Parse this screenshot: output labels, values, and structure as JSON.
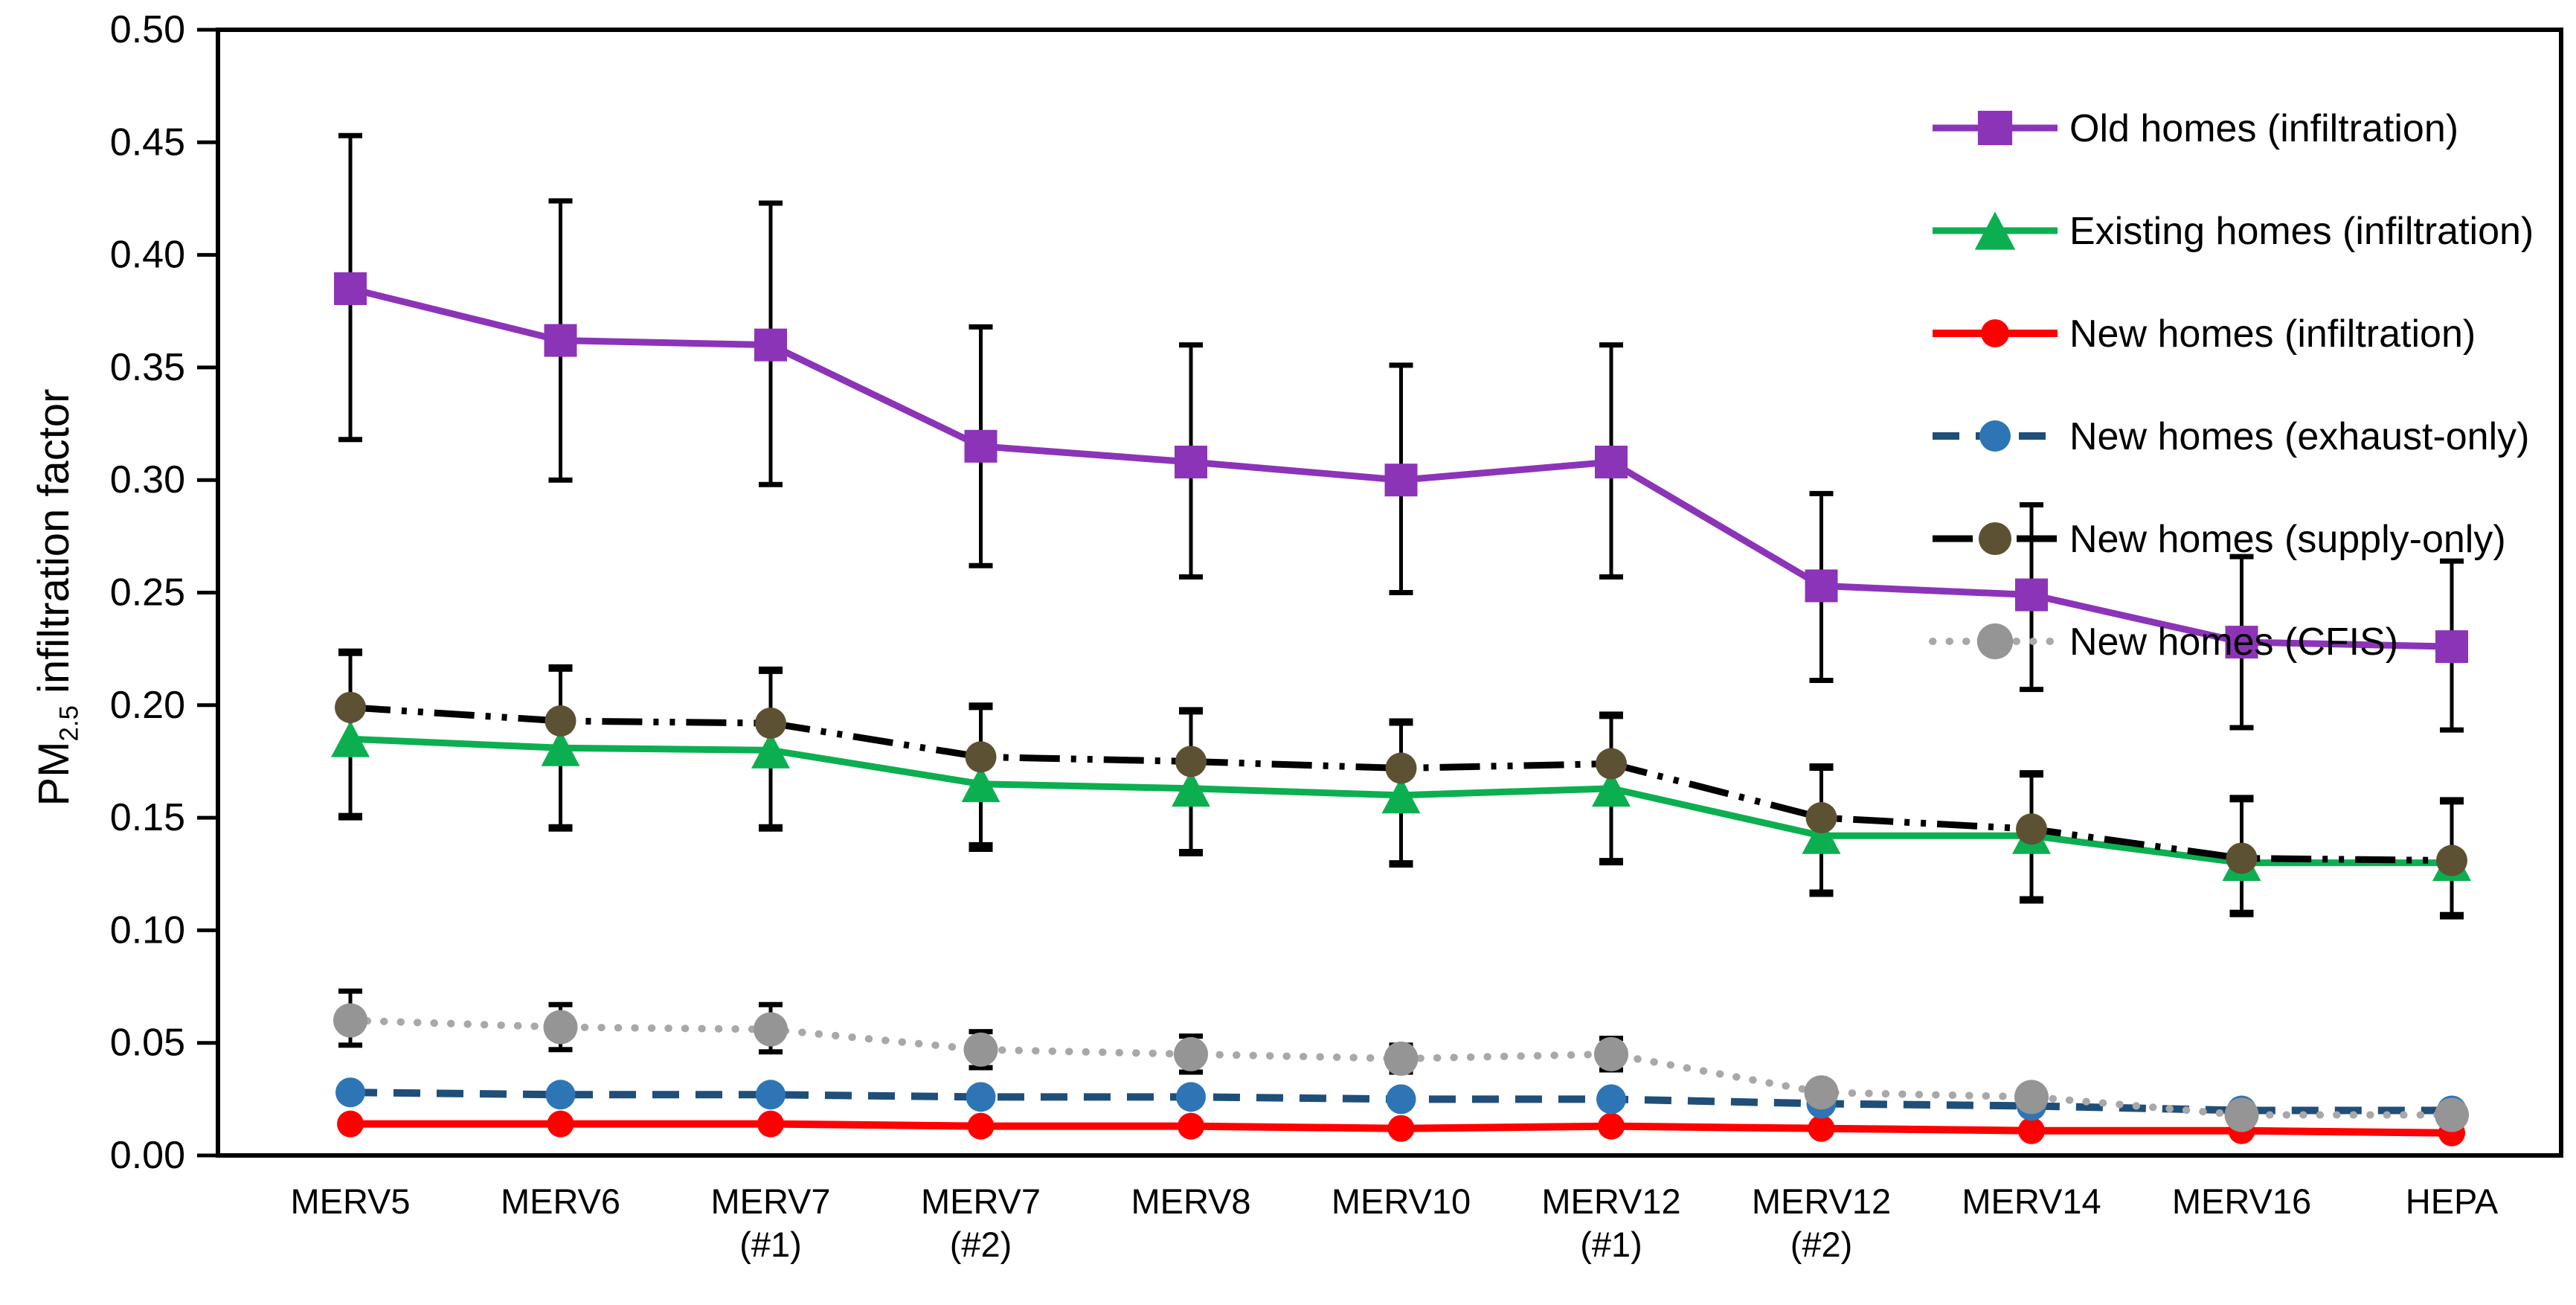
{
  "chart_data": {
    "type": "line",
    "title": "",
    "ylabel": {
      "prefix": "PM",
      "sub": "2.5",
      "suffix": " infiltration factor"
    },
    "xlabel": "",
    "grid": false,
    "legend_position": "top-right-inside",
    "background_color": "#ffffff",
    "frame_color": "#000000",
    "categories": [
      "MERV5",
      "MERV6",
      "MERV7\n(#1)",
      "MERV7\n(#2)",
      "MERV8",
      "MERV10",
      "MERV12\n(#1)",
      "MERV12\n(#2)",
      "MERV14",
      "MERV16",
      "HEPA"
    ],
    "y_axis": {
      "min": 0.0,
      "max": 0.5,
      "step": 0.05,
      "tick_labels": [
        "0.00",
        "0.05",
        "0.10",
        "0.15",
        "0.20",
        "0.25",
        "0.30",
        "0.35",
        "0.40",
        "0.45",
        "0.50"
      ]
    },
    "series": [
      {
        "name": "Old homes (infiltration)",
        "marker": "square",
        "marker_color": "#8C34B8",
        "marker_size": 44,
        "line_color": "#8C34B8",
        "line_style": "solid",
        "line_width": 9,
        "error_color": "#000000",
        "values": [
          0.385,
          0.362,
          0.36,
          0.315,
          0.308,
          0.3,
          0.308,
          0.253,
          0.249,
          0.228,
          0.226
        ],
        "err_low": [
          0.318,
          0.3,
          0.298,
          0.262,
          0.257,
          0.25,
          0.257,
          0.211,
          0.207,
          0.19,
          0.189
        ],
        "err_high": [
          0.453,
          0.424,
          0.423,
          0.368,
          0.36,
          0.351,
          0.36,
          0.294,
          0.289,
          0.266,
          0.264
        ]
      },
      {
        "name": "Existing homes (infiltration)",
        "marker": "triangle",
        "marker_color": "#0CAF50",
        "marker_size": 52,
        "line_color": "#0CAF50",
        "line_style": "solid",
        "line_width": 9,
        "error_color": "#000000",
        "values": [
          0.185,
          0.181,
          0.18,
          0.165,
          0.163,
          0.16,
          0.163,
          0.142,
          0.142,
          0.13,
          0.13
        ],
        "err_low": [
          0.15,
          0.145,
          0.145,
          0.136,
          0.134,
          0.129,
          0.13,
          0.116,
          0.113,
          0.107,
          0.106
        ],
        "err_high": [
          0.223,
          0.216,
          0.215,
          0.199,
          0.197,
          0.192,
          0.195,
          0.172,
          0.169,
          0.158,
          0.157
        ]
      },
      {
        "name": "New homes (infiltration)",
        "marker": "circle",
        "marker_color": "#FF0000",
        "marker_size": 36,
        "line_color": "#FF0000",
        "line_style": "solid",
        "line_width": 10,
        "error_color": "#000000",
        "values": [
          0.014,
          0.014,
          0.014,
          0.013,
          0.013,
          0.012,
          0.013,
          0.012,
          0.011,
          0.011,
          0.01
        ],
        "err_low": null,
        "err_high": null
      },
      {
        "name": "New homes (exhaust-only)",
        "marker": "circle",
        "marker_color": "#2E75B6",
        "marker_size": 40,
        "line_color": "#1F4E79",
        "line_style": "dashed",
        "line_width": 10,
        "error_color": "#000000",
        "values": [
          0.028,
          0.027,
          0.027,
          0.026,
          0.026,
          0.025,
          0.025,
          0.023,
          0.022,
          0.02,
          0.02
        ],
        "err_low": null,
        "err_high": null
      },
      {
        "name": "New homes (supply-only)",
        "marker": "circle",
        "marker_color": "#5C5132",
        "marker_size": 42,
        "line_color": "#000000",
        "line_style": "dash-dot-dot",
        "line_width": 9,
        "error_color": "#000000",
        "values": [
          0.199,
          0.193,
          0.192,
          0.177,
          0.175,
          0.172,
          0.174,
          0.15,
          0.145,
          0.132,
          0.131
        ],
        "err_low": [
          0.151,
          0.146,
          0.146,
          0.138,
          0.135,
          0.13,
          0.131,
          0.117,
          0.114,
          0.108,
          0.107
        ],
        "err_high": [
          0.224,
          0.217,
          0.216,
          0.2,
          0.198,
          0.193,
          0.196,
          0.173,
          0.17,
          0.159,
          0.158
        ]
      },
      {
        "name": "New homes (CFIS)",
        "marker": "circle",
        "marker_color": "#959595",
        "marker_size": 46,
        "line_color": "#A8A8A8",
        "line_style": "dotted",
        "line_width": 10,
        "error_color": "#000000",
        "values": [
          0.06,
          0.057,
          0.056,
          0.047,
          0.045,
          0.043,
          0.045,
          0.028,
          0.026,
          0.018,
          0.018
        ],
        "err_low": [
          0.049,
          0.047,
          0.046,
          0.039,
          0.037,
          0.037,
          0.038,
          null,
          null,
          null,
          null
        ],
        "err_high": [
          0.073,
          0.067,
          0.067,
          0.055,
          0.053,
          0.049,
          0.052,
          null,
          null,
          null,
          null
        ]
      }
    ]
  }
}
